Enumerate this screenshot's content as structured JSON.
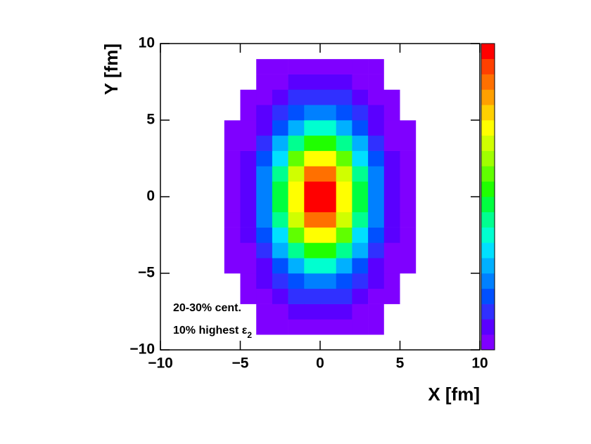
{
  "chart_data": {
    "type": "heatmap",
    "x_label": "X [fm]",
    "y_label": "Y [fm]",
    "annotations": [
      {
        "text": "20-30% cent."
      },
      {
        "text": "10% highest ε",
        "subscript": "2"
      }
    ],
    "xlim": [
      -10,
      10
    ],
    "ylim": [
      -10,
      10
    ],
    "xticks": [
      {
        "value": -10,
        "label": "−10"
      },
      {
        "value": -5,
        "label": "−5"
      },
      0,
      5,
      10
    ],
    "yticks": [
      {
        "value": -10,
        "label": "−10"
      },
      {
        "value": -5,
        "label": "−5"
      },
      0,
      5,
      10
    ],
    "xbins": [
      -10,
      -9,
      -8,
      -7,
      -6,
      -5,
      -4,
      -3,
      -2,
      -1,
      0,
      1,
      2,
      3,
      4,
      5,
      6,
      7,
      8,
      9,
      10
    ],
    "ybins": [
      -10,
      -9,
      -8,
      -7,
      -6,
      -5,
      -4,
      -3,
      -2,
      -1,
      0,
      1,
      2,
      3,
      4,
      5,
      6,
      7,
      8,
      9,
      10
    ],
    "zlim": [
      0,
      1
    ],
    "palette": [
      "#7f00ff",
      "#5a00ff",
      "#3030ff",
      "#0050ff",
      "#0080ff",
      "#00b0ff",
      "#00e0ff",
      "#00ffd0",
      "#00ff90",
      "#00ff40",
      "#20ff00",
      "#60ff00",
      "#a0ff00",
      "#d0ff00",
      "#ffff00",
      "#ffd000",
      "#ffa000",
      "#ff7000",
      "#ff4000",
      "#ff0000"
    ],
    "z": [
      [
        0,
        0,
        0,
        0,
        0,
        0,
        0,
        0,
        0,
        0,
        0,
        0,
        0,
        0,
        0,
        0,
        0,
        0,
        0,
        0
      ],
      [
        0,
        0,
        0,
        0,
        0,
        0,
        0.01,
        0.01,
        0.02,
        0.03,
        0.03,
        0.02,
        0.01,
        0.01,
        0,
        0,
        0,
        0,
        0,
        0
      ],
      [
        0,
        0,
        0,
        0,
        0,
        0,
        0.01,
        0.03,
        0.05,
        0.06,
        0.06,
        0.05,
        0.03,
        0.01,
        0,
        0,
        0,
        0,
        0,
        0
      ],
      [
        0,
        0,
        0,
        0,
        0,
        0.01,
        0.03,
        0.06,
        0.1,
        0.13,
        0.13,
        0.1,
        0.06,
        0.03,
        0.01,
        0,
        0,
        0,
        0,
        0
      ],
      [
        0,
        0,
        0,
        0,
        0,
        0.02,
        0.05,
        0.11,
        0.17,
        0.22,
        0.22,
        0.17,
        0.11,
        0.05,
        0.02,
        0,
        0,
        0,
        0,
        0
      ],
      [
        0,
        0,
        0,
        0,
        0.01,
        0.03,
        0.08,
        0.17,
        0.28,
        0.36,
        0.36,
        0.28,
        0.17,
        0.08,
        0.03,
        0.01,
        0,
        0,
        0,
        0
      ],
      [
        0,
        0,
        0,
        0,
        0.01,
        0.04,
        0.12,
        0.25,
        0.41,
        0.53,
        0.53,
        0.41,
        0.25,
        0.12,
        0.04,
        0.01,
        0,
        0,
        0,
        0
      ],
      [
        0,
        0,
        0,
        0,
        0.01,
        0.06,
        0.16,
        0.34,
        0.56,
        0.72,
        0.72,
        0.56,
        0.34,
        0.16,
        0.06,
        0.01,
        0,
        0,
        0,
        0
      ],
      [
        0,
        0,
        0,
        0,
        0.02,
        0.07,
        0.2,
        0.41,
        0.68,
        0.87,
        0.87,
        0.68,
        0.41,
        0.2,
        0.07,
        0.02,
        0,
        0,
        0,
        0
      ],
      [
        0,
        0,
        0,
        0,
        0.02,
        0.08,
        0.22,
        0.46,
        0.74,
        0.96,
        0.96,
        0.74,
        0.46,
        0.22,
        0.08,
        0.02,
        0,
        0,
        0,
        0
      ],
      [
        0,
        0,
        0,
        0,
        0.02,
        0.08,
        0.22,
        0.46,
        0.74,
        0.96,
        0.96,
        0.74,
        0.46,
        0.22,
        0.08,
        0.02,
        0,
        0,
        0,
        0
      ],
      [
        0,
        0,
        0,
        0,
        0.02,
        0.07,
        0.2,
        0.41,
        0.68,
        0.87,
        0.87,
        0.68,
        0.41,
        0.2,
        0.07,
        0.02,
        0,
        0,
        0,
        0
      ],
      [
        0,
        0,
        0,
        0,
        0.01,
        0.06,
        0.16,
        0.34,
        0.56,
        0.72,
        0.72,
        0.56,
        0.34,
        0.16,
        0.06,
        0.01,
        0,
        0,
        0,
        0
      ],
      [
        0,
        0,
        0,
        0,
        0.01,
        0.04,
        0.12,
        0.25,
        0.41,
        0.53,
        0.53,
        0.41,
        0.25,
        0.12,
        0.04,
        0.01,
        0,
        0,
        0,
        0
      ],
      [
        0,
        0,
        0,
        0,
        0.01,
        0.03,
        0.08,
        0.17,
        0.28,
        0.36,
        0.36,
        0.28,
        0.17,
        0.08,
        0.03,
        0.01,
        0,
        0,
        0,
        0
      ],
      [
        0,
        0,
        0,
        0,
        0,
        0.02,
        0.05,
        0.11,
        0.17,
        0.22,
        0.22,
        0.17,
        0.11,
        0.05,
        0.02,
        0,
        0,
        0,
        0,
        0
      ],
      [
        0,
        0,
        0,
        0,
        0,
        0.01,
        0.03,
        0.06,
        0.1,
        0.13,
        0.13,
        0.1,
        0.06,
        0.03,
        0.01,
        0,
        0,
        0,
        0,
        0
      ],
      [
        0,
        0,
        0,
        0,
        0,
        0,
        0.01,
        0.03,
        0.05,
        0.06,
        0.06,
        0.05,
        0.03,
        0.01,
        0,
        0,
        0,
        0,
        0,
        0
      ],
      [
        0,
        0,
        0,
        0,
        0,
        0,
        0.01,
        0.01,
        0.02,
        0.03,
        0.03,
        0.02,
        0.01,
        0.01,
        0,
        0,
        0,
        0,
        0,
        0
      ],
      [
        0,
        0,
        0,
        0,
        0,
        0,
        0,
        0,
        0,
        0,
        0,
        0,
        0,
        0,
        0,
        0,
        0,
        0,
        0,
        0
      ]
    ]
  }
}
